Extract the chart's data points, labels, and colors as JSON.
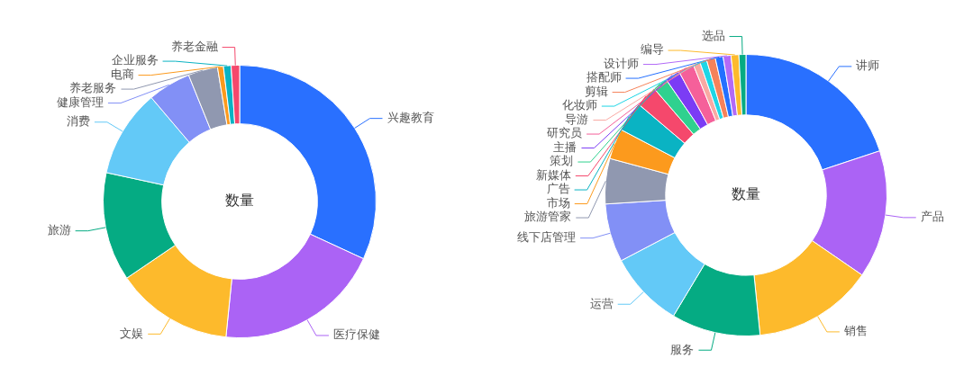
{
  "chart_data": [
    {
      "type": "donut",
      "title": "数量",
      "categories": [
        "兴趣教育",
        "医疗保健",
        "文娱",
        "旅游",
        "消费",
        "健康管理",
        "养老服务",
        "电商",
        "企业服务",
        "养老金融"
      ],
      "values": [
        31.9,
        19.7,
        13.9,
        12.9,
        10.4,
        5.1,
        3.5,
        0.7,
        0.9,
        1.0
      ],
      "colors": [
        "#2970ff",
        "#ab63f5",
        "#fdba2c",
        "#05ab83",
        "#63c9f7",
        "#8290f6",
        "#9098b0",
        "#fc9a1d",
        "#0ab3c3",
        "#f5486c"
      ]
    },
    {
      "type": "donut",
      "title": "数量",
      "categories": [
        "讲师",
        "产品",
        "销售",
        "服务",
        "运营",
        "线下店管理",
        "旅游管家",
        "市场",
        "广告",
        "新媒体",
        "策划",
        "主播",
        "研究员",
        "导游",
        "化妆师",
        "剪辑",
        "搭配师",
        "设计师",
        "编导",
        "选品"
      ],
      "values": [
        19.9,
        14.7,
        13.8,
        10.2,
        8.7,
        6.7,
        5.2,
        3.5,
        3.5,
        2.5,
        1.7,
        1.7,
        1.8,
        0.8,
        0.8,
        1.0,
        0.9,
        0.9,
        0.9,
        0.8
      ],
      "colors": [
        "#2970ff",
        "#ab63f5",
        "#fdba2c",
        "#05ab83",
        "#63c9f7",
        "#8290f6",
        "#9098b0",
        "#fc9a1d",
        "#0ab3c3",
        "#f5486c",
        "#2fd18f",
        "#7b3cf5",
        "#f5609a",
        "#f9a9a3",
        "#1ed6e6",
        "#f5825a",
        "#2470ff",
        "#b26af7",
        "#fdba2c",
        "#05ab83"
      ]
    }
  ]
}
